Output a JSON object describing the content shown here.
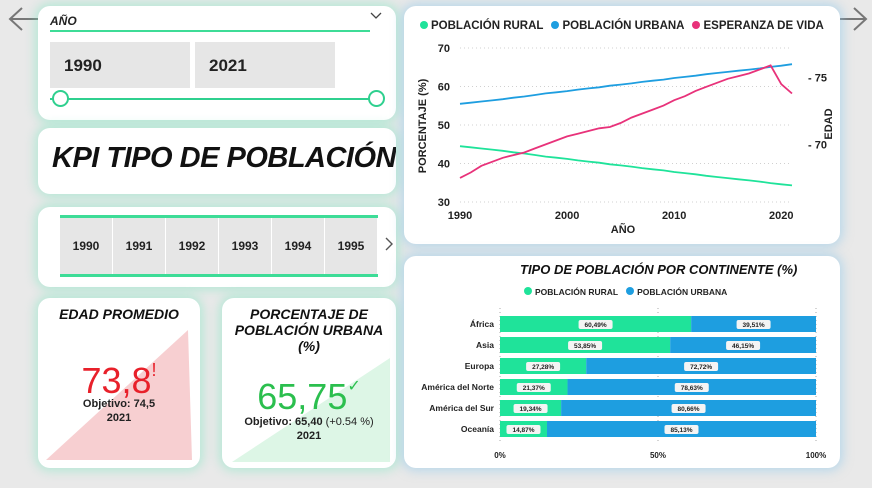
{
  "nav": {
    "prev_icon": "arrow-left-icon",
    "next_icon": "arrow-right-icon"
  },
  "slicer": {
    "title": "AÑO",
    "from": "1990",
    "to": "2021"
  },
  "kpi_title": "KPI TIPO DE POBLACIÓN",
  "year_slicer": {
    "years": [
      "1990",
      "1991",
      "1992",
      "1993",
      "1994",
      "1995"
    ]
  },
  "edad": {
    "title": "EDAD PROMEDIO",
    "value": "73,8",
    "alert": "!",
    "target": "Objetivo: 74,5",
    "year": "2021",
    "color": "#e8202a"
  },
  "urbana": {
    "title": "PORCENTAJE DE POBLACIÓN URBANA (%)",
    "value": "65,75",
    "check": "✓",
    "target": "Objetivo: 65,40",
    "delta": "(+0.54 %)",
    "year": "2021",
    "color": "#2bbf4e"
  },
  "colors": {
    "rural": "#1fe39a",
    "urbana": "#1e9ee0",
    "vida": "#e8327a"
  },
  "line_chart": {
    "legend": [
      "POBLACIÓN RURAL",
      "POBLACIÓN URBANA",
      "ESPERANZA DE VIDA"
    ],
    "ylabel": "PORCENTAJE (%)",
    "y2label": "EDAD",
    "xlabel": "AÑO",
    "yticks": [
      "30",
      "40",
      "50",
      "60",
      "70"
    ],
    "y2ticks": [
      "70",
      "75"
    ],
    "xticks": [
      "1990",
      "2000",
      "2010",
      "2020"
    ]
  },
  "bar_chart": {
    "title": "TIPO DE POBLACIÓN POR CONTINENTE (%)",
    "legend": [
      "POBLACIÓN RURAL",
      "POBLACIÓN URBANA"
    ],
    "xticks": [
      "0%",
      "50%",
      "100%"
    ]
  },
  "chart_data": [
    {
      "type": "line",
      "x": [
        1990,
        1991,
        1992,
        1993,
        1994,
        1995,
        1996,
        1997,
        1998,
        1999,
        2000,
        2001,
        2002,
        2003,
        2004,
        2005,
        2006,
        2007,
        2008,
        2009,
        2010,
        2011,
        2012,
        2013,
        2014,
        2015,
        2016,
        2017,
        2018,
        2019,
        2020,
        2021
      ],
      "series": [
        {
          "name": "POBLACIÓN RURAL",
          "axis": "left",
          "values": [
            44.5,
            44.2,
            43.9,
            43.6,
            43.3,
            42.9,
            42.6,
            42.2,
            41.8,
            41.5,
            41.2,
            40.8,
            40.5,
            40.2,
            39.8,
            39.5,
            39.2,
            38.8,
            38.5,
            38.2,
            37.8,
            37.5,
            37.2,
            36.8,
            36.5,
            36.2,
            35.9,
            35.6,
            35.3,
            34.9,
            34.6,
            34.3
          ]
        },
        {
          "name": "POBLACIÓN URBANA",
          "axis": "left",
          "values": [
            55.5,
            55.8,
            56.1,
            56.4,
            56.7,
            57.1,
            57.4,
            57.8,
            58.2,
            58.5,
            58.8,
            59.2,
            59.5,
            59.8,
            60.2,
            60.5,
            60.8,
            61.2,
            61.5,
            61.8,
            62.2,
            62.5,
            62.8,
            63.2,
            63.5,
            63.8,
            64.1,
            64.4,
            64.7,
            65.1,
            65.4,
            65.8
          ]
        },
        {
          "name": "ESPERANZA DE VIDA",
          "axis": "right",
          "values": [
            67.5,
            67.9,
            68.4,
            68.7,
            69.0,
            69.2,
            69.4,
            69.7,
            70.0,
            70.3,
            70.6,
            70.8,
            71.0,
            71.2,
            71.3,
            71.6,
            72.0,
            72.3,
            72.6,
            72.9,
            73.3,
            73.6,
            74.0,
            74.3,
            74.6,
            74.9,
            75.1,
            75.3,
            75.6,
            75.9,
            74.5,
            73.8
          ]
        }
      ],
      "ylim": [
        30,
        70
      ],
      "y2lim": [
        65.7,
        77.2
      ],
      "xlim": [
        1990,
        2021
      ],
      "grid": true,
      "legend_position": "top"
    },
    {
      "type": "bar",
      "stacked": true,
      "orientation": "horizontal",
      "categories": [
        "África",
        "Asia",
        "Europa",
        "América del Norte",
        "América del Sur",
        "Oceanía"
      ],
      "series": [
        {
          "name": "POBLACIÓN RURAL",
          "values": [
            60.49,
            53.85,
            27.28,
            21.37,
            19.34,
            14.87
          ],
          "labels": [
            "60,49%",
            "53,85%",
            "27,28%",
            "21,37%",
            "19,34%",
            "14,87%"
          ]
        },
        {
          "name": "POBLACIÓN URBANA",
          "values": [
            39.51,
            46.15,
            72.72,
            78.63,
            80.66,
            85.13
          ],
          "labels": [
            "39,51%",
            "46,15%",
            "72,72%",
            "78,63%",
            "80,66%",
            "85,13%"
          ]
        }
      ],
      "xlim": [
        0,
        100
      ],
      "legend_position": "top"
    }
  ]
}
